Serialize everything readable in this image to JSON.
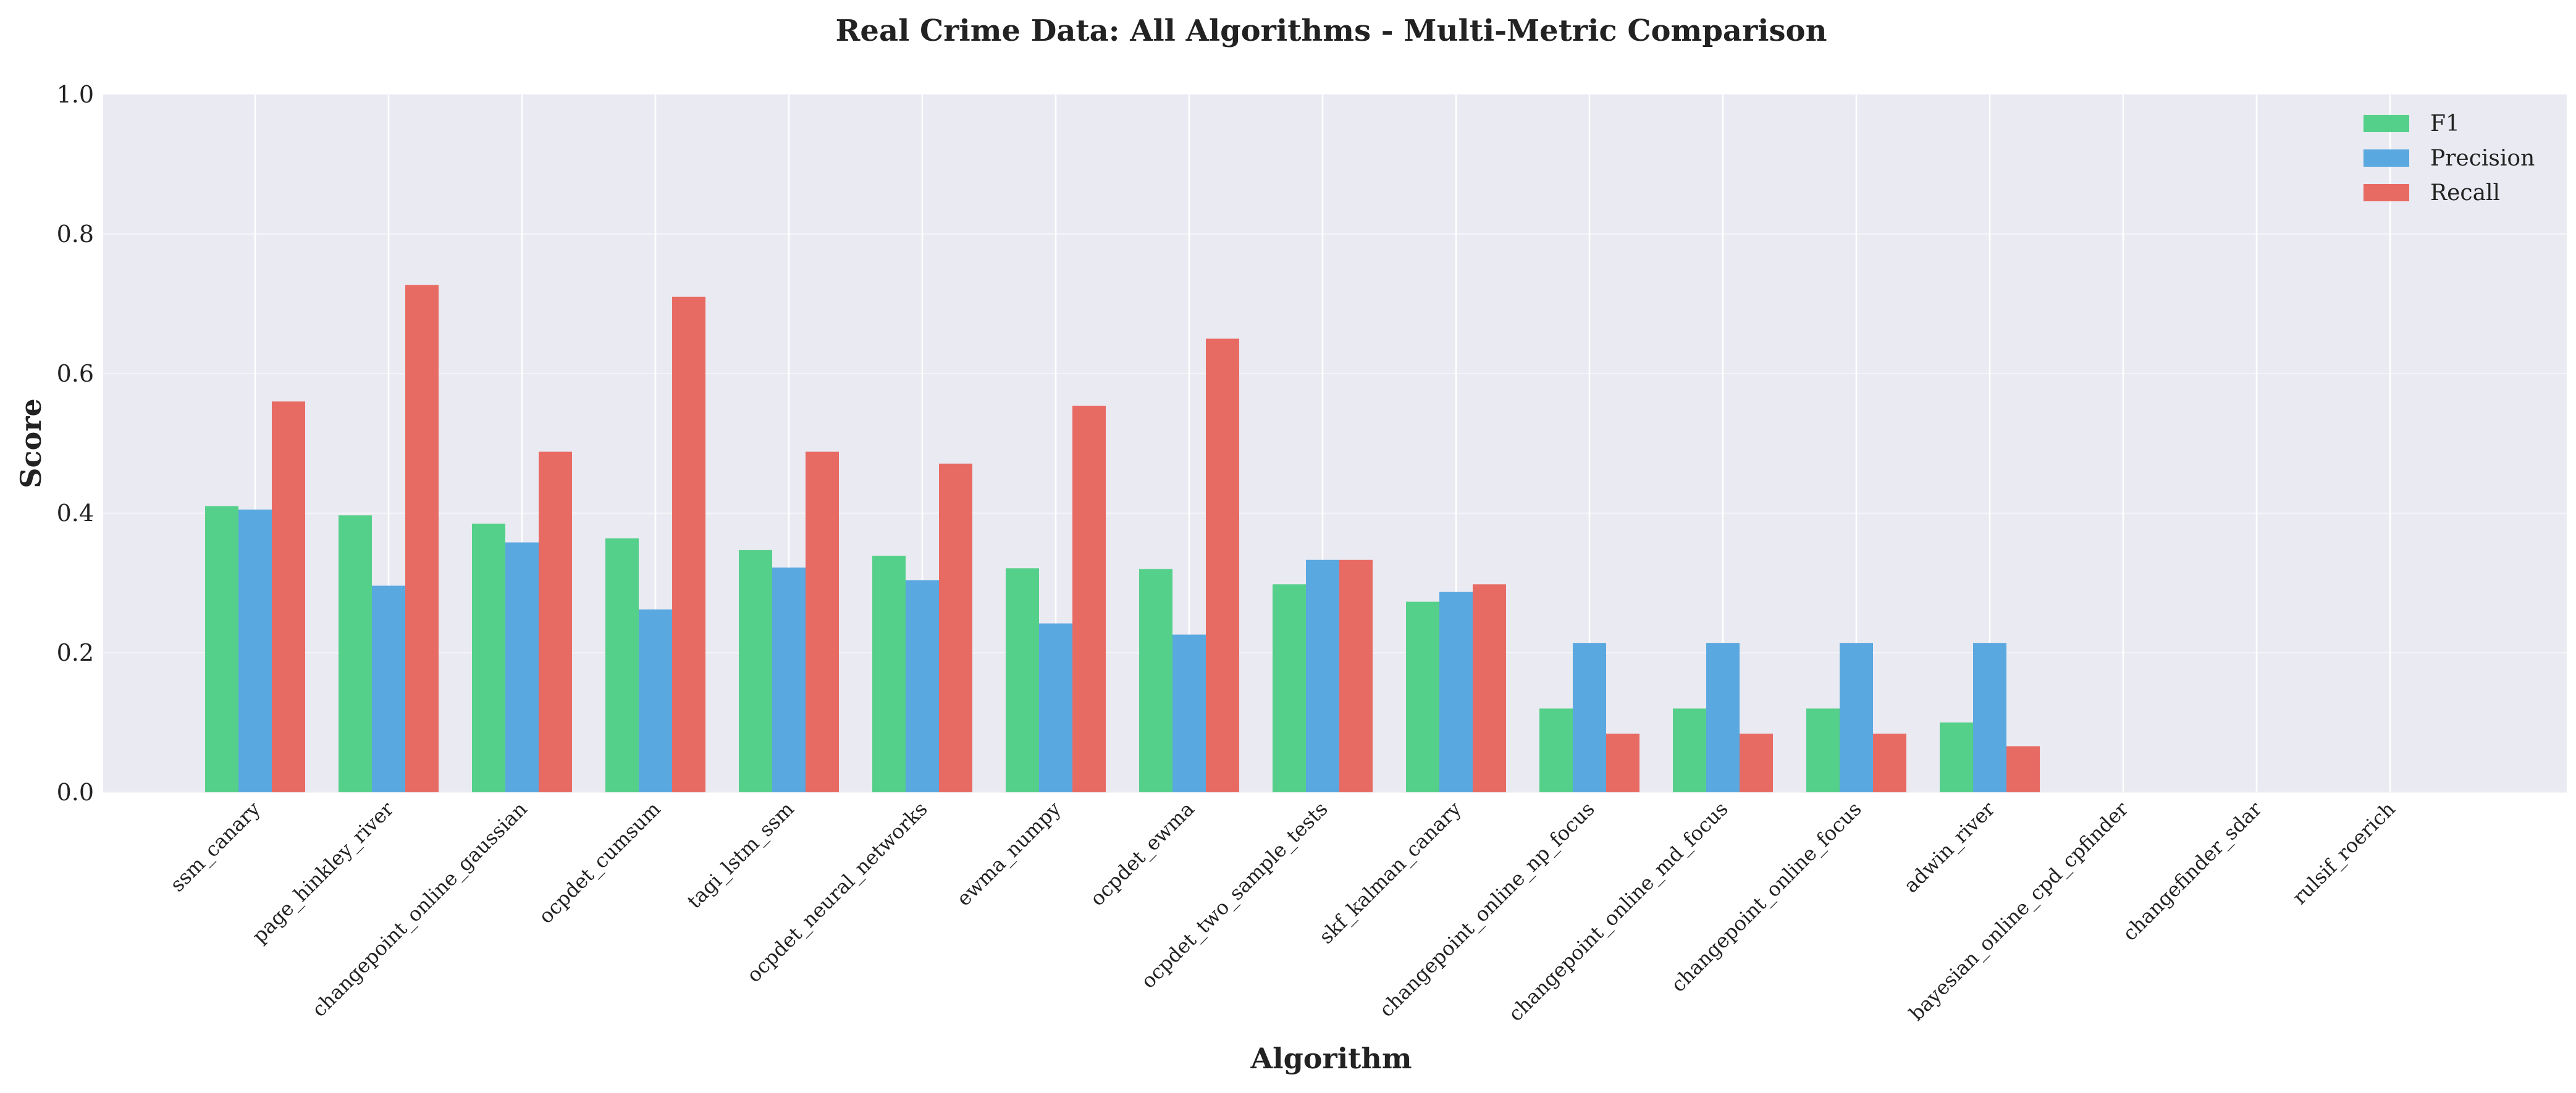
{
  "chart_data": {
    "type": "bar",
    "title": "Real Crime Data: All Algorithms - Multi-Metric Comparison",
    "xlabel": "Algorithm",
    "ylabel": "Score",
    "ylim": [
      0,
      1.0
    ],
    "yticks": [
      "0.0",
      "0.2",
      "0.4",
      "0.6",
      "0.8",
      "1.0"
    ],
    "grid": true,
    "legend_position": "top-right",
    "categories": [
      "ssm_canary",
      "page_hinkley_river",
      "changepoint_online_gaussian",
      "ocpdet_cumsum",
      "tagi_lstm_ssm",
      "ocpdet_neural_networks",
      "ewma_numpy",
      "ocpdet_ewma",
      "ocpdet_two_sample_tests",
      "skf_kalman_canary",
      "changepoint_online_np_focus",
      "changepoint_online_md_focus",
      "changepoint_online_focus",
      "adwin_river",
      "bayesian_online_cpd_cpfinder",
      "changefinder_sdar",
      "rulsif_roerich"
    ],
    "series": [
      {
        "name": "F1",
        "color": "#55d08a",
        "values": [
          0.41,
          0.397,
          0.385,
          0.364,
          0.347,
          0.339,
          0.321,
          0.32,
          0.298,
          0.273,
          0.12,
          0.12,
          0.12,
          0.1,
          0,
          0,
          0
        ]
      },
      {
        "name": "Precision",
        "color": "#5aa8e0",
        "values": [
          0.405,
          0.296,
          0.358,
          0.262,
          0.322,
          0.304,
          0.242,
          0.226,
          0.333,
          0.287,
          0.214,
          0.214,
          0.214,
          0.214,
          0,
          0,
          0
        ]
      },
      {
        "name": "Recall",
        "color": "#e86b63",
        "values": [
          0.56,
          0.727,
          0.488,
          0.71,
          0.488,
          0.471,
          0.554,
          0.65,
          0.333,
          0.298,
          0.084,
          0.084,
          0.084,
          0.066,
          0,
          0,
          0
        ]
      }
    ]
  }
}
